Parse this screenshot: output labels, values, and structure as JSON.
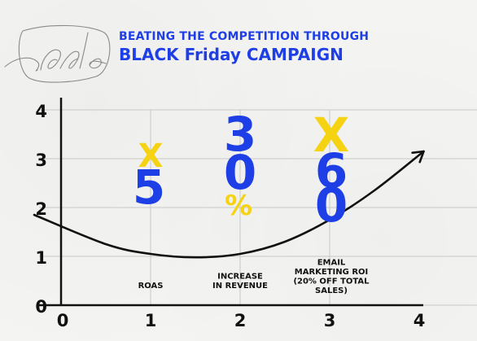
{
  "title": {
    "line1": "BEATING THE COMPETITION THROUGH",
    "line2": "BLACK Friday CAMPAIGN"
  },
  "logo_text": "sale",
  "colors": {
    "blue": "#1f3fe6",
    "yellow": "#f5d312",
    "ink": "#111111",
    "grid": "#c8c8c8"
  },
  "chart_data": {
    "type": "line",
    "title": "BEATING THE COMPETITION THROUGH BLACK Friday CAMPAIGN",
    "xlabel": "",
    "ylabel": "",
    "xlim": [
      0,
      4
    ],
    "ylim": [
      0,
      4
    ],
    "x_ticks": [
      "0",
      "1",
      "2",
      "3",
      "4"
    ],
    "y_ticks": [
      "0",
      "1",
      "2",
      "3",
      "4"
    ],
    "grid": true,
    "legend": "none",
    "curve": {
      "x": [
        -0.3,
        0.5,
        1.0,
        1.5,
        2.0,
        2.5,
        3.0,
        3.5,
        4.05
      ],
      "y": [
        1.85,
        1.25,
        1.05,
        0.98,
        1.05,
        1.3,
        1.75,
        2.35,
        3.15
      ],
      "arrow_end": true
    },
    "stats": [
      {
        "x": 1,
        "top": "X",
        "main": "5",
        "label": [
          "ROAS"
        ]
      },
      {
        "x": 2,
        "top": "3",
        "main": "0",
        "suffix": "%",
        "label": [
          "INCREASE",
          "IN REVENUE"
        ]
      },
      {
        "x": 3,
        "top": "X",
        "main": "6",
        "main2": "0",
        "label": [
          "EMAIL",
          "MARKETING ROI",
          "(20% OFF TOTAL",
          "SALES)"
        ]
      }
    ]
  }
}
